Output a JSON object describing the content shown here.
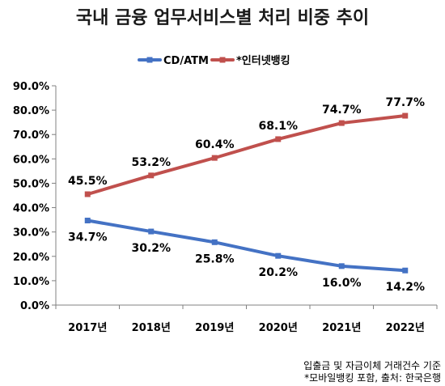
{
  "chart_data": {
    "type": "line",
    "title": "국내 금융 업무서비스별 처리 비중 추이",
    "categories": [
      "2017년",
      "2018년",
      "2019년",
      "2020년",
      "2021년",
      "2022년"
    ],
    "series": [
      {
        "name": "CD/ATM",
        "values": [
          34.7,
          30.2,
          25.8,
          20.2,
          16.0,
          14.2
        ],
        "labels": [
          "34.7%",
          "30.2%",
          "25.8%",
          "20.2%",
          "16.0%",
          "14.2%"
        ],
        "color": "#4472C4"
      },
      {
        "name": "*인터넷뱅킹",
        "values": [
          45.5,
          53.2,
          60.4,
          68.1,
          74.7,
          77.7
        ],
        "labels": [
          "45.5%",
          "53.2%",
          "60.4%",
          "68.1%",
          "74.7%",
          "77.7%"
        ],
        "color": "#C0504D"
      }
    ],
    "y_ticks": [
      "0.0%",
      "10.0%",
      "20.0%",
      "30.0%",
      "40.0%",
      "50.0%",
      "60.0%",
      "70.0%",
      "80.0%",
      "90.0%"
    ],
    "ylim": [
      0,
      90
    ],
    "grid": false,
    "legend_position": "top-center"
  },
  "notes": [
    "입출금 및 자금이체 거래건수 기준",
    "*모바일뱅킹 포함, 출처: 한국은행"
  ]
}
